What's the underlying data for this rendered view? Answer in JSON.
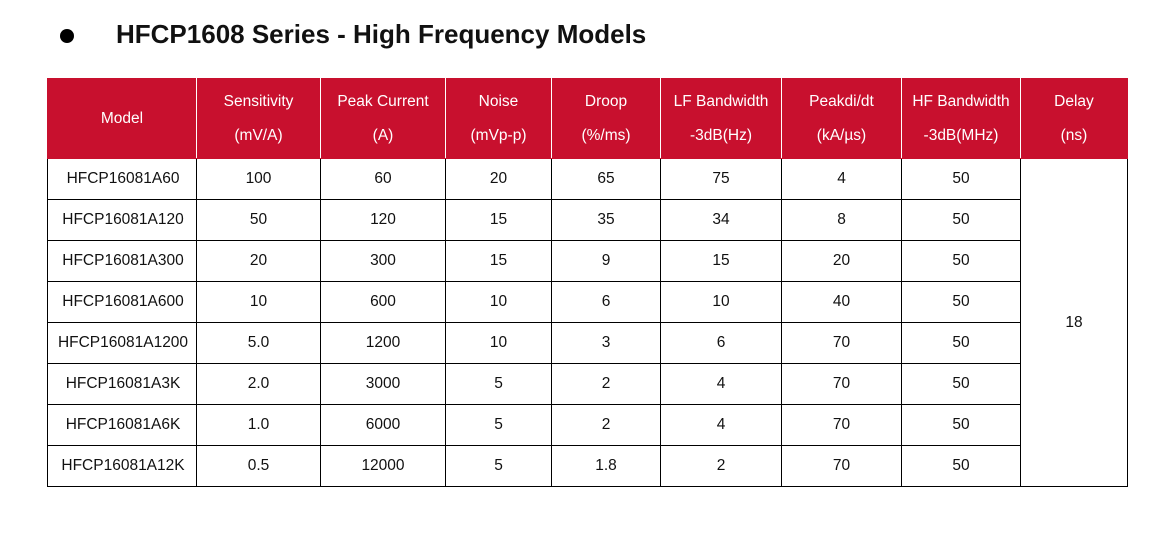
{
  "heading": {
    "title": "HFCP1608 Series - High Frequency Models"
  },
  "table": {
    "header_color": "#c8102e",
    "columns": [
      {
        "line1": "Model",
        "line2": ""
      },
      {
        "line1": "Sensitivity",
        "line2": "(mV/A)"
      },
      {
        "line1": "Peak Current",
        "line2": "(A)"
      },
      {
        "line1": "Noise",
        "line2": "(mVp-p)"
      },
      {
        "line1": "Droop",
        "line2": "(%/ms)"
      },
      {
        "line1": "LF Bandwidth",
        "line2": "-3dB(Hz)"
      },
      {
        "line1": "Peakdi/dt",
        "line2": "(kA/µs)"
      },
      {
        "line1": "HF Bandwidth",
        "line2": "-3dB(MHz)"
      },
      {
        "line1": "Delay",
        "line2": "(ns)"
      }
    ],
    "rows": [
      [
        "HFCP16081A60",
        "100",
        "60",
        "20",
        "65",
        "75",
        "4",
        "50"
      ],
      [
        "HFCP16081A120",
        "50",
        "120",
        "15",
        "35",
        "34",
        "8",
        "50"
      ],
      [
        "HFCP16081A300",
        "20",
        "300",
        "15",
        "9",
        "15",
        "20",
        "50"
      ],
      [
        "HFCP16081A600",
        "10",
        "600",
        "10",
        "6",
        "10",
        "40",
        "50"
      ],
      [
        "HFCP16081A1200",
        "5.0",
        "1200",
        "10",
        "3",
        "6",
        "70",
        "50"
      ],
      [
        "HFCP16081A3K",
        "2.0",
        "3000",
        "5",
        "2",
        "4",
        "70",
        "50"
      ],
      [
        "HFCP16081A6K",
        "1.0",
        "6000",
        "5",
        "2",
        "4",
        "70",
        "50"
      ],
      [
        "HFCP16081A12K",
        "0.5",
        "12000",
        "5",
        "1.8",
        "2",
        "70",
        "50"
      ]
    ],
    "delay_value": "18"
  }
}
